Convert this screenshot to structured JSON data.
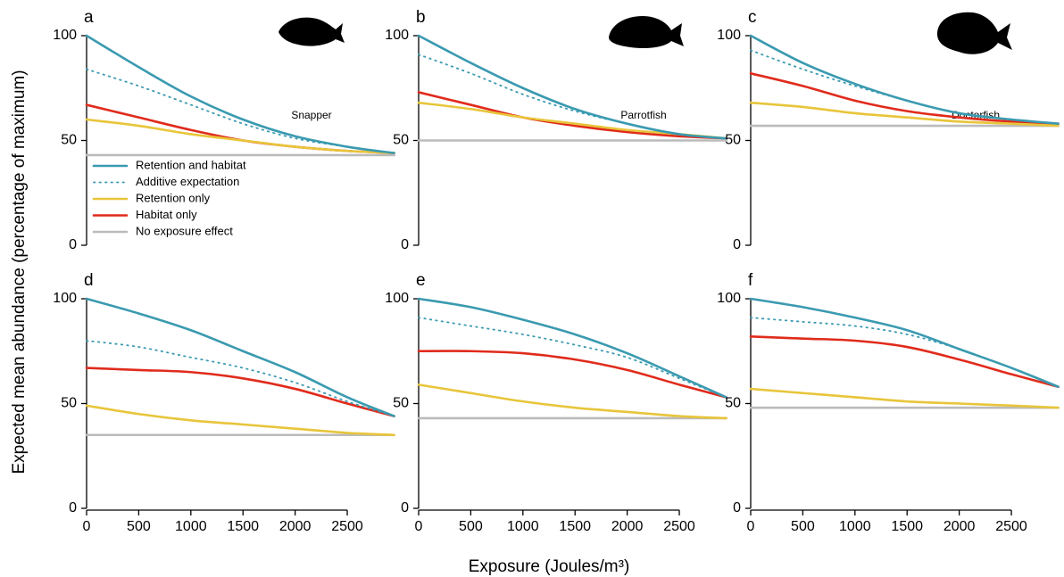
{
  "ylabel": "Expected mean abundance (percentage of maximum)",
  "xlabel": "Exposure (Joules/m³)",
  "chart_data": [
    {
      "type": "line",
      "panel": "a",
      "annotation": "Snapper",
      "legend": "lower left",
      "x": [
        0,
        500,
        1000,
        1500,
        2000,
        2500,
        2950
      ],
      "xlim": [
        0,
        2950
      ],
      "ylim": [
        0,
        100
      ],
      "yticks": [
        0,
        50,
        100
      ],
      "series": [
        {
          "name": "Retention and habitat",
          "color": "#3a9ab0",
          "style": "solid",
          "values": [
            100,
            85,
            71,
            60,
            52,
            47,
            44
          ]
        },
        {
          "name": "Additive expectation",
          "color": "#3a9ab0",
          "style": "dotted",
          "values": [
            84,
            76,
            67,
            58,
            51,
            47,
            44
          ]
        },
        {
          "name": "Retention only",
          "color": "#e8c53a",
          "style": "solid",
          "values": [
            60,
            57,
            53,
            50,
            47,
            45,
            44
          ]
        },
        {
          "name": "Habitat only",
          "color": "#e02b1c",
          "style": "solid",
          "values": [
            67,
            61,
            55,
            50,
            47,
            45,
            44
          ]
        },
        {
          "name": "No exposure effect",
          "color": "#bbbbbb",
          "style": "solid",
          "values": [
            43,
            43,
            43,
            43,
            43,
            43,
            43
          ]
        }
      ]
    },
    {
      "type": "line",
      "panel": "b",
      "annotation": "Parrotfish",
      "x": [
        0,
        500,
        1000,
        1500,
        2000,
        2500,
        2950
      ],
      "xlim": [
        0,
        2950
      ],
      "ylim": [
        0,
        100
      ],
      "yticks": [
        0,
        50,
        100
      ],
      "series": [
        {
          "color": "#3a9ab0",
          "style": "solid",
          "values": [
            100,
            87,
            75,
            65,
            58,
            53,
            51
          ]
        },
        {
          "color": "#3a9ab0",
          "style": "dotted",
          "values": [
            91,
            82,
            72,
            64,
            58,
            53,
            51
          ]
        },
        {
          "color": "#e8c53a",
          "style": "solid",
          "values": [
            68,
            65,
            61,
            58,
            55,
            53,
            51
          ]
        },
        {
          "color": "#e02b1c",
          "style": "solid",
          "values": [
            73,
            67,
            61,
            57,
            54,
            52,
            51
          ]
        },
        {
          "color": "#bbbbbb",
          "style": "solid",
          "values": [
            50,
            50,
            50,
            50,
            50,
            50,
            50
          ]
        }
      ]
    },
    {
      "type": "line",
      "panel": "c",
      "annotation": "Doctorfish",
      "x": [
        0,
        500,
        1000,
        1500,
        2000,
        2500,
        2950
      ],
      "xlim": [
        0,
        2950
      ],
      "ylim": [
        0,
        100
      ],
      "yticks": [
        0,
        50,
        100
      ],
      "series": [
        {
          "color": "#3a9ab0",
          "style": "solid",
          "values": [
            100,
            87,
            77,
            69,
            63,
            60,
            58
          ]
        },
        {
          "color": "#3a9ab0",
          "style": "dotted",
          "values": [
            93,
            84,
            76,
            69,
            63,
            60,
            58
          ]
        },
        {
          "color": "#e8c53a",
          "style": "solid",
          "values": [
            68,
            66,
            63,
            61,
            59,
            58,
            57
          ]
        },
        {
          "color": "#e02b1c",
          "style": "solid",
          "values": [
            82,
            76,
            69,
            64,
            61,
            59,
            58
          ]
        },
        {
          "color": "#bbbbbb",
          "style": "solid",
          "values": [
            57,
            57,
            57,
            57,
            57,
            57,
            57
          ]
        }
      ]
    },
    {
      "type": "line",
      "panel": "d",
      "x": [
        0,
        500,
        1000,
        1500,
        2000,
        2500,
        2950
      ],
      "xlim": [
        0,
        2950
      ],
      "ylim": [
        0,
        100
      ],
      "yticks": [
        0,
        50,
        100
      ],
      "xticks": [
        0,
        500,
        1000,
        1500,
        2000,
        2500
      ],
      "series": [
        {
          "color": "#3a9ab0",
          "style": "solid",
          "values": [
            100,
            93,
            85,
            75,
            65,
            53,
            44
          ]
        },
        {
          "color": "#3a9ab0",
          "style": "dotted",
          "values": [
            80,
            77,
            72,
            67,
            60,
            51,
            44
          ]
        },
        {
          "color": "#e8c53a",
          "style": "solid",
          "values": [
            49,
            45,
            42,
            40,
            38,
            36,
            35
          ]
        },
        {
          "color": "#e02b1c",
          "style": "solid",
          "values": [
            67,
            66,
            65,
            62,
            57,
            50,
            44
          ]
        },
        {
          "color": "#bbbbbb",
          "style": "solid",
          "values": [
            35,
            35,
            35,
            35,
            35,
            35,
            35
          ]
        }
      ]
    },
    {
      "type": "line",
      "panel": "e",
      "x": [
        0,
        500,
        1000,
        1500,
        2000,
        2500,
        2950
      ],
      "xlim": [
        0,
        2950
      ],
      "ylim": [
        0,
        100
      ],
      "yticks": [
        0,
        50,
        100
      ],
      "xticks": [
        0,
        500,
        1000,
        1500,
        2000,
        2500
      ],
      "series": [
        {
          "color": "#3a9ab0",
          "style": "solid",
          "values": [
            100,
            96,
            90,
            83,
            74,
            63,
            53
          ]
        },
        {
          "color": "#3a9ab0",
          "style": "dotted",
          "values": [
            91,
            87,
            83,
            78,
            72,
            62,
            53
          ]
        },
        {
          "color": "#e8c53a",
          "style": "solid",
          "values": [
            59,
            55,
            51,
            48,
            46,
            44,
            43
          ]
        },
        {
          "color": "#e02b1c",
          "style": "solid",
          "values": [
            75,
            75,
            74,
            71,
            66,
            59,
            53
          ]
        },
        {
          "color": "#bbbbbb",
          "style": "solid",
          "values": [
            43,
            43,
            43,
            43,
            43,
            43,
            43
          ]
        }
      ]
    },
    {
      "type": "line",
      "panel": "f",
      "x": [
        0,
        500,
        1000,
        1500,
        2000,
        2500,
        2950
      ],
      "xlim": [
        0,
        2950
      ],
      "ylim": [
        0,
        100
      ],
      "yticks": [
        0,
        50,
        100
      ],
      "xticks": [
        0,
        500,
        1000,
        1500,
        2000,
        2500
      ],
      "series": [
        {
          "color": "#3a9ab0",
          "style": "solid",
          "values": [
            100,
            96,
            91,
            85,
            76,
            67,
            58
          ]
        },
        {
          "color": "#3a9ab0",
          "style": "dotted",
          "values": [
            91,
            89,
            87,
            83,
            76,
            67,
            58
          ]
        },
        {
          "color": "#e8c53a",
          "style": "solid",
          "values": [
            57,
            55,
            53,
            51,
            50,
            49,
            48
          ]
        },
        {
          "color": "#e02b1c",
          "style": "solid",
          "values": [
            82,
            81,
            80,
            77,
            71,
            64,
            58
          ]
        },
        {
          "color": "#bbbbbb",
          "style": "solid",
          "values": [
            48,
            48,
            48,
            48,
            48,
            48,
            48
          ]
        }
      ]
    }
  ]
}
